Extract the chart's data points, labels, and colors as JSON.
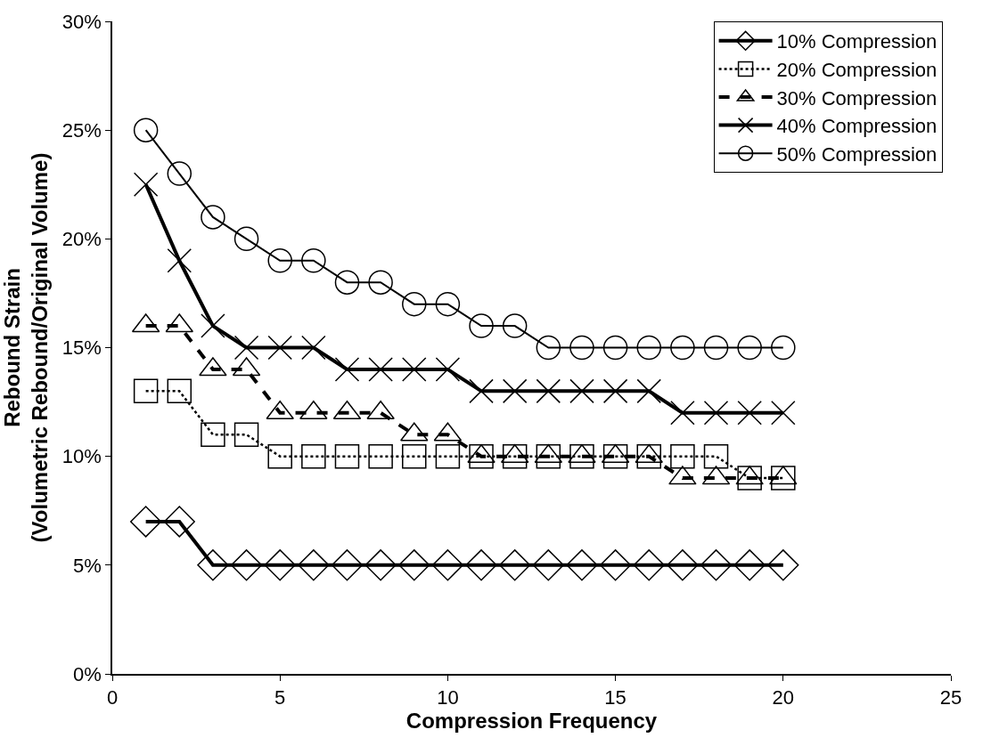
{
  "chart_data": {
    "type": "line",
    "xlabel": "Compression Frequency",
    "ylabel": "Rebound Strain\n(Volumetric Rebound/Original Volume)",
    "x": [
      1,
      2,
      3,
      4,
      5,
      6,
      7,
      8,
      9,
      10,
      11,
      12,
      13,
      14,
      15,
      16,
      17,
      18,
      19,
      20
    ],
    "series": [
      {
        "name": "10% Compression",
        "color": "#000000",
        "marker": "diamond",
        "line_style": "solid",
        "values": [
          7,
          7,
          5,
          5,
          5,
          5,
          5,
          5,
          5,
          5,
          5,
          5,
          5,
          5,
          5,
          5,
          5,
          5,
          5,
          5
        ]
      },
      {
        "name": "20% Compression",
        "color": "#000000",
        "marker": "square",
        "line_style": "dotted",
        "values": [
          13,
          13,
          11,
          11,
          10,
          10,
          10,
          10,
          10,
          10,
          10,
          10,
          10,
          10,
          10,
          10,
          10,
          10,
          9,
          9
        ]
      },
      {
        "name": "30% Compression",
        "color": "#000000",
        "marker": "triangle",
        "line_style": "dashed",
        "values": [
          16,
          16,
          14,
          14,
          12,
          12,
          12,
          12,
          11,
          11,
          10,
          10,
          10,
          10,
          10,
          10,
          9,
          9,
          9,
          9
        ]
      },
      {
        "name": "40% Compression",
        "color": "#000000",
        "marker": "cross",
        "line_style": "solid",
        "values": [
          22.5,
          19,
          16,
          15,
          15,
          15,
          14,
          14,
          14,
          14,
          13,
          13,
          13,
          13,
          13,
          13,
          12,
          12,
          12,
          12
        ]
      },
      {
        "name": "50% Compression",
        "color": "#000000",
        "marker": "circle",
        "line_style": "solid",
        "values": [
          25,
          23,
          21,
          20,
          19,
          19,
          18,
          18,
          17,
          17,
          16,
          16,
          15,
          15,
          15,
          15,
          15,
          15,
          15,
          15
        ]
      }
    ],
    "xlim": [
      0,
      25
    ],
    "xticks": [
      0,
      5,
      10,
      15,
      20,
      25
    ],
    "ylim": [
      0,
      30
    ],
    "yticks": [
      {
        "value": 0,
        "label": "0%"
      },
      {
        "value": 5,
        "label": "5%"
      },
      {
        "value": 10,
        "label": "10%"
      },
      {
        "value": 15,
        "label": "15%"
      },
      {
        "value": 20,
        "label": "20%"
      },
      {
        "value": 25,
        "label": "25%"
      },
      {
        "value": 30,
        "label": "30%"
      }
    ],
    "legend": "top right"
  }
}
